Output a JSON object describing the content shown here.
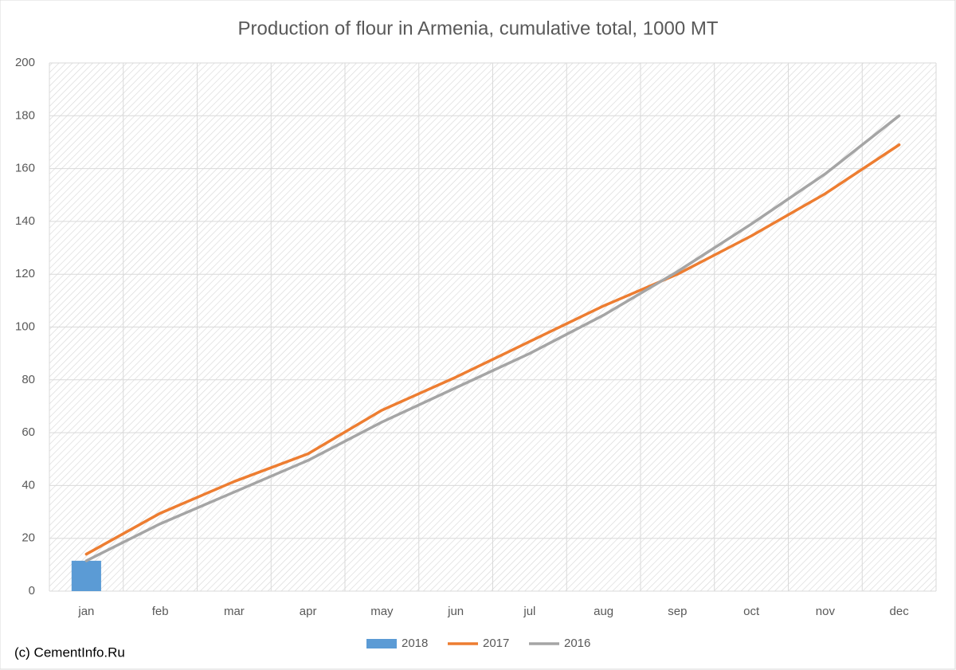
{
  "chart_data": {
    "type": "line",
    "title": "Production of flour in Armenia, cumulative total, 1000 MT",
    "source": "(c) CementInfo.Ru",
    "categories": [
      "jan",
      "feb",
      "mar",
      "apr",
      "may",
      "jun",
      "jul",
      "aug",
      "sep",
      "oct",
      "nov",
      "dec"
    ],
    "series": [
      {
        "name": "2018",
        "type": "bar",
        "color": "#5b9bd5",
        "values": [
          11.5,
          null,
          null,
          null,
          null,
          null,
          null,
          null,
          null,
          null,
          null,
          null
        ]
      },
      {
        "name": "2017",
        "type": "line",
        "color": "#ed7d31",
        "values": [
          14,
          29.5,
          41.5,
          52,
          68.5,
          81,
          94.5,
          108,
          120,
          134.5,
          150.5,
          169
        ]
      },
      {
        "name": "2016",
        "type": "line",
        "color": "#a5a5a5",
        "values": [
          11.5,
          25.5,
          37.5,
          49.5,
          64,
          77,
          90,
          104.5,
          121,
          139,
          158,
          180
        ]
      }
    ],
    "ylim": [
      0,
      200
    ],
    "yticks": [
      0,
      20,
      40,
      60,
      80,
      100,
      120,
      140,
      160,
      180,
      200
    ],
    "grid": true,
    "legend": "bottom"
  }
}
